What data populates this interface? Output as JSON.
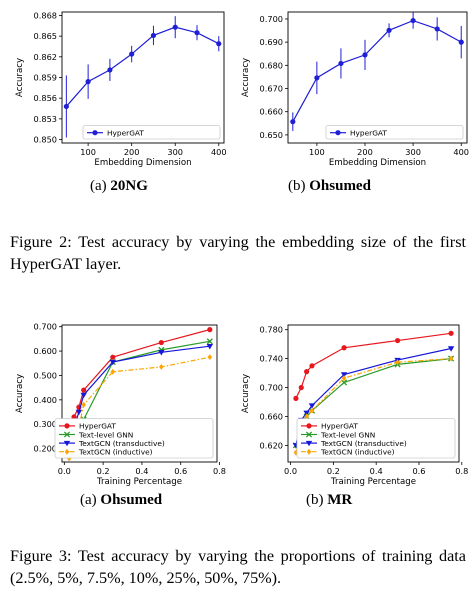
{
  "charts": [
    {
      "id": "emb-20ng",
      "subcaption": {
        "tag": "(a)",
        "name": "20NG"
      },
      "chart_data": {
        "type": "line",
        "xlabel": "Embedding Dimension",
        "ylabel": "Accuracy",
        "xlim": [
          40,
          412
        ],
        "ylim": [
          0.8495,
          0.8685
        ],
        "xticks": [
          100,
          200,
          300,
          400
        ],
        "xtick_labels": [
          "100",
          "200",
          "300",
          "400"
        ],
        "yticks": [
          0.85,
          0.853,
          0.856,
          0.859,
          0.862,
          0.865,
          0.868
        ],
        "ytick_labels": [
          "0.850",
          "0.853",
          "0.856",
          "0.859",
          "0.862",
          "0.865",
          "0.868"
        ],
        "x": [
          50,
          100,
          150,
          200,
          250,
          300,
          350,
          400
        ],
        "series": [
          {
            "name": "HyperGAT",
            "color": "#1f1fd6",
            "marker": "circle",
            "values": [
              0.8548,
              0.8584,
              0.8601,
              0.8624,
              0.8651,
              0.8663,
              0.8655,
              0.8639
            ],
            "errors": [
              0.0045,
              0.0025,
              0.0016,
              0.0012,
              0.0014,
              0.0016,
              0.0011,
              0.0011
            ]
          }
        ],
        "legend_position": "lower right",
        "grid": false
      }
    },
    {
      "id": "emb-ohsumed",
      "subcaption": {
        "tag": "(b)",
        "name": "Ohsumed"
      },
      "chart_data": {
        "type": "line",
        "xlabel": "Embedding Dimension",
        "ylabel": "Accuracy",
        "xlim": [
          40,
          412
        ],
        "ylim": [
          0.6465,
          0.703
        ],
        "xticks": [
          100,
          200,
          300,
          400
        ],
        "xtick_labels": [
          "100",
          "200",
          "300",
          "400"
        ],
        "yticks": [
          0.65,
          0.66,
          0.67,
          0.68,
          0.69,
          0.7
        ],
        "ytick_labels": [
          "0.650",
          "0.660",
          "0.670",
          "0.680",
          "0.690",
          "0.700"
        ],
        "x": [
          50,
          100,
          150,
          200,
          250,
          300,
          350,
          400
        ],
        "series": [
          {
            "name": "HyperGAT",
            "color": "#1f1fd6",
            "marker": "circle",
            "values": [
              0.6557,
              0.6746,
              0.6808,
              0.6845,
              0.6951,
              0.6993,
              0.6957,
              0.69
            ],
            "errors": [
              0.004,
              0.007,
              0.0065,
              0.0065,
              0.003,
              0.0035,
              0.005,
              0.007
            ]
          }
        ],
        "legend_position": "lower right",
        "grid": false
      }
    },
    {
      "id": "prop-ohsumed",
      "subcaption": {
        "tag": "(a)",
        "name": "Ohsumed"
      },
      "chart_data": {
        "type": "line",
        "xlabel": "Training Percentage",
        "ylabel": "Accuracy",
        "xlim": [
          -0.012,
          0.787
        ],
        "ylim": [
          0.145,
          0.707
        ],
        "xticks": [
          0.0,
          0.2,
          0.4,
          0.6,
          0.8
        ],
        "xtick_labels": [
          "0.0",
          "0.2",
          "0.4",
          "0.6",
          "0.8"
        ],
        "yticks": [
          0.2,
          0.3,
          0.4,
          0.5,
          0.6,
          0.7
        ],
        "ytick_labels": [
          "0.200",
          "0.300",
          "0.400",
          "0.500",
          "0.600",
          "0.700"
        ],
        "x": [
          0.025,
          0.05,
          0.075,
          0.1,
          0.25,
          0.5,
          0.75
        ],
        "series": [
          {
            "name": "HyperGAT",
            "color": "#e8171e",
            "marker": "circle",
            "dash": "solid",
            "values": [
              0.265,
              0.33,
              0.37,
              0.44,
              0.575,
              0.635,
              0.688
            ]
          },
          {
            "name": "Text-level GNN",
            "color": "#2a9b2a",
            "marker": "x",
            "dash": "solid",
            "values": [
              0.205,
              0.255,
              0.29,
              0.32,
              0.555,
              0.605,
              0.64
            ]
          },
          {
            "name": "TextGCN (transductive)",
            "color": "#1717d9",
            "marker": "triangle-down",
            "dash": "solid",
            "values": [
              0.19,
              0.285,
              0.35,
              0.42,
              0.555,
              0.595,
              0.62
            ]
          },
          {
            "name": "TextGCN (inductive)",
            "color": "#ffa500",
            "marker": "diamond",
            "dash": "dashdot",
            "values": [
              0.16,
              0.2,
              0.29,
              0.38,
              0.515,
              0.535,
              0.575
            ]
          }
        ],
        "legend_position": "lower right",
        "grid": false
      }
    },
    {
      "id": "prop-mr",
      "subcaption": {
        "tag": "(b)",
        "name": "MR"
      },
      "chart_data": {
        "type": "line",
        "xlabel": "Training Percentage",
        "ylabel": "Accuracy",
        "xlim": [
          -0.012,
          0.787
        ],
        "ylim": [
          0.597,
          0.7865
        ],
        "xticks": [
          0.0,
          0.2,
          0.4,
          0.6,
          0.8
        ],
        "xtick_labels": [
          "0.0",
          "0.2",
          "0.4",
          "0.6",
          "0.8"
        ],
        "yticks": [
          0.62,
          0.66,
          0.7,
          0.74,
          0.78
        ],
        "ytick_labels": [
          "0.620",
          "0.660",
          "0.700",
          "0.740",
          "0.780"
        ],
        "x": [
          0.025,
          0.05,
          0.075,
          0.1,
          0.25,
          0.5,
          0.75
        ],
        "series": [
          {
            "name": "HyperGAT",
            "color": "#e8171e",
            "marker": "circle",
            "dash": "solid",
            "values": [
              0.685,
              0.7,
              0.722,
              0.73,
              0.755,
              0.765,
              0.775
            ]
          },
          {
            "name": "Text-level GNN",
            "color": "#2a9b2a",
            "marker": "x",
            "dash": "solid",
            "values": [
              0.62,
              0.648,
              0.66,
              0.668,
              0.707,
              0.732,
              0.74
            ]
          },
          {
            "name": "TextGCN (transductive)",
            "color": "#1717d9",
            "marker": "triangle-down",
            "dash": "solid",
            "values": [
              0.62,
              0.655,
              0.665,
              0.675,
              0.718,
              0.738,
              0.754
            ]
          },
          {
            "name": "TextGCN (inductive)",
            "color": "#ffa500",
            "marker": "diamond",
            "dash": "dashdot",
            "values": [
              0.61,
              0.64,
              0.66,
              0.668,
              0.713,
              0.735,
              0.74
            ]
          }
        ],
        "legend_position": "lower right",
        "grid": false
      }
    }
  ],
  "captions": {
    "figure2": "Figure 2: Test accuracy by varying the embedding size of the first HyperGAT layer.",
    "figure3": "Figure 3: Test accuracy by varying the proportions of training data (2.5%, 5%, 7.5%, 10%, 25%, 50%, 75%)."
  }
}
